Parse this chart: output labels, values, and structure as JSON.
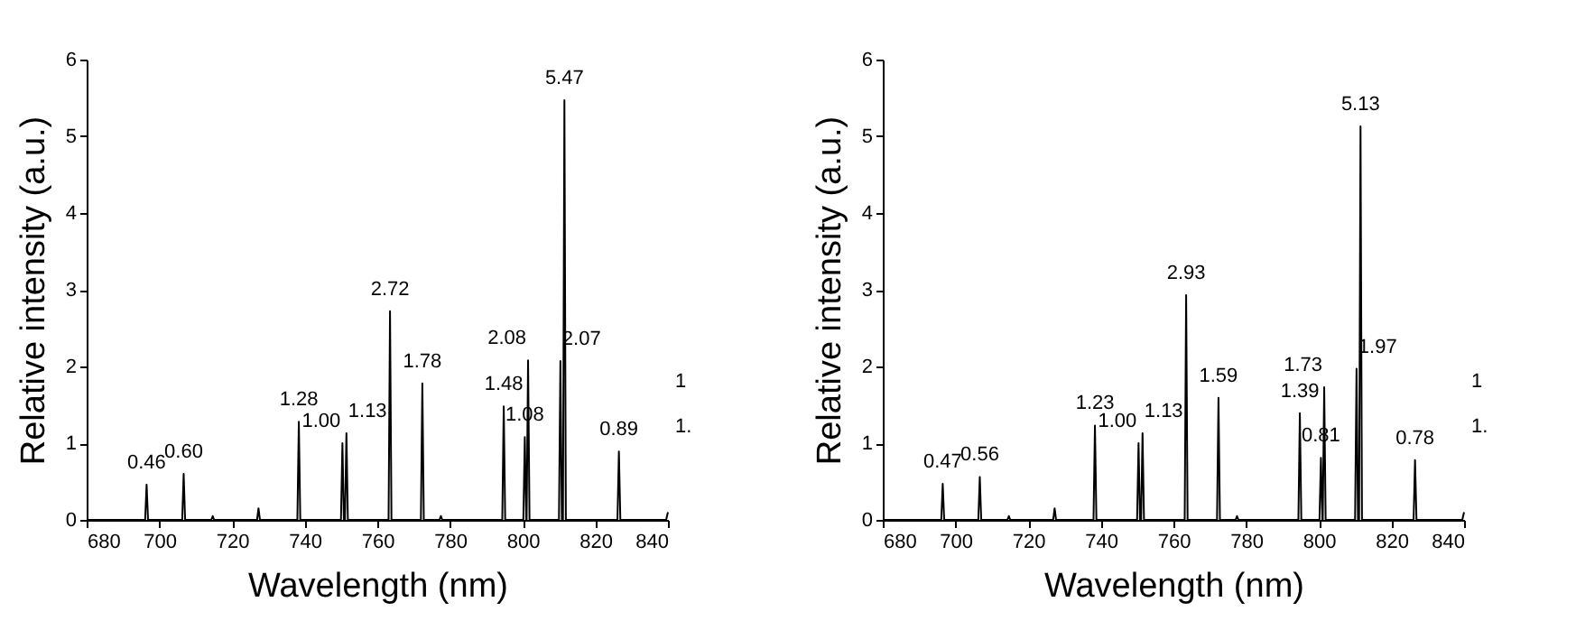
{
  "chart_data": [
    {
      "type": "line",
      "xlabel": "Wavelength (nm)",
      "ylabel": "Relative intensity (a.u.)",
      "xlim": [
        680,
        840
      ],
      "xticks": [
        680,
        700,
        720,
        740,
        760,
        780,
        800,
        820,
        840
      ],
      "ylim": [
        0,
        6
      ],
      "yticks": [
        0,
        1,
        2,
        3,
        4,
        5,
        6
      ],
      "grid": false,
      "annotations": [
        "1",
        "1."
      ],
      "x": [
        680,
        696.1,
        696.5,
        696.9,
        706.3,
        706.7,
        707.1,
        714.3,
        714.7,
        715.1,
        726.9,
        727.3,
        727.7,
        738.0,
        738.4,
        738.8,
        750.0,
        750.4,
        750.8,
        751.1,
        751.5,
        751.9,
        763.1,
        763.5,
        763.9,
        772.0,
        772.4,
        772.8,
        777.1,
        777.5,
        777.9,
        794.4,
        794.8,
        795.2,
        800.2,
        800.6,
        801.0,
        801.1,
        801.5,
        801.9,
        810.0,
        810.4,
        810.8,
        811.1,
        811.5,
        811.9,
        826.1,
        826.5,
        826.9,
        839.5,
        840
      ],
      "series": [
        {
          "color": "#000000",
          "values": [
            0,
            0,
            0.46,
            0,
            0,
            0.6,
            0,
            0,
            0.05,
            0,
            0,
            0.15,
            0,
            0,
            1.28,
            0,
            0,
            1.0,
            0,
            0,
            1.13,
            0,
            0,
            2.72,
            0,
            0,
            1.78,
            0,
            0,
            0.05,
            0,
            0,
            1.48,
            0,
            0,
            1.08,
            0,
            0,
            2.08,
            0,
            0,
            2.07,
            0,
            0,
            5.47,
            0,
            0,
            0.89,
            0,
            0,
            0.1
          ],
          "value_labels": [
            null,
            null,
            "0.46",
            null,
            null,
            "0.60",
            null,
            null,
            null,
            null,
            null,
            null,
            null,
            null,
            "1.28",
            null,
            null,
            "1.00",
            null,
            null,
            "1.13",
            null,
            null,
            "2.72",
            null,
            null,
            "1.78",
            null,
            null,
            null,
            null,
            null,
            "1.48",
            null,
            null,
            "1.08",
            null,
            null,
            "2.08",
            null,
            null,
            "2.07",
            null,
            null,
            "5.47",
            null,
            null,
            "0.89",
            null,
            null,
            null
          ]
        }
      ]
    },
    {
      "type": "line",
      "xlabel": "Wavelength (nm)",
      "ylabel": "Relative intensity (a.u.)",
      "xlim": [
        680,
        840
      ],
      "xticks": [
        680,
        700,
        720,
        740,
        760,
        780,
        800,
        820,
        840
      ],
      "ylim": [
        0,
        6
      ],
      "yticks": [
        0,
        1,
        2,
        3,
        4,
        5,
        6
      ],
      "grid": false,
      "annotations": [
        "1",
        "1."
      ],
      "x": [
        680,
        696.1,
        696.5,
        696.9,
        706.3,
        706.7,
        707.1,
        714.3,
        714.7,
        715.1,
        726.9,
        727.3,
        727.7,
        738.0,
        738.4,
        738.8,
        750.0,
        750.4,
        750.8,
        751.1,
        751.5,
        751.9,
        763.1,
        763.5,
        763.9,
        772.0,
        772.4,
        772.8,
        777.1,
        777.5,
        777.9,
        794.4,
        794.8,
        795.2,
        800.2,
        800.6,
        801.0,
        801.1,
        801.5,
        801.9,
        810.0,
        810.4,
        810.8,
        811.1,
        811.5,
        811.9,
        826.1,
        826.5,
        826.9,
        839.5,
        840
      ],
      "series": [
        {
          "color": "#000000",
          "values": [
            0,
            0,
            0.47,
            0,
            0,
            0.56,
            0,
            0,
            0.05,
            0,
            0,
            0.15,
            0,
            0,
            1.23,
            0,
            0,
            1.0,
            0,
            0,
            1.13,
            0,
            0,
            2.93,
            0,
            0,
            1.59,
            0,
            0,
            0.05,
            0,
            0,
            1.39,
            0,
            0,
            0.81,
            0,
            0,
            1.73,
            0,
            0,
            1.97,
            0,
            0,
            5.13,
            0,
            0,
            0.78,
            0,
            0,
            0.1
          ],
          "value_labels": [
            null,
            null,
            "0.47",
            null,
            null,
            "0.56",
            null,
            null,
            null,
            null,
            null,
            null,
            null,
            null,
            "1.23",
            null,
            null,
            "1.00",
            null,
            null,
            "1.13",
            null,
            null,
            "2.93",
            null,
            null,
            "1.59",
            null,
            null,
            null,
            null,
            null,
            "1.39",
            null,
            null,
            "0.81",
            null,
            null,
            "1.73",
            null,
            null,
            "1.97",
            null,
            null,
            "5.13",
            null,
            null,
            "0.78",
            null,
            null,
            null
          ]
        }
      ]
    }
  ]
}
